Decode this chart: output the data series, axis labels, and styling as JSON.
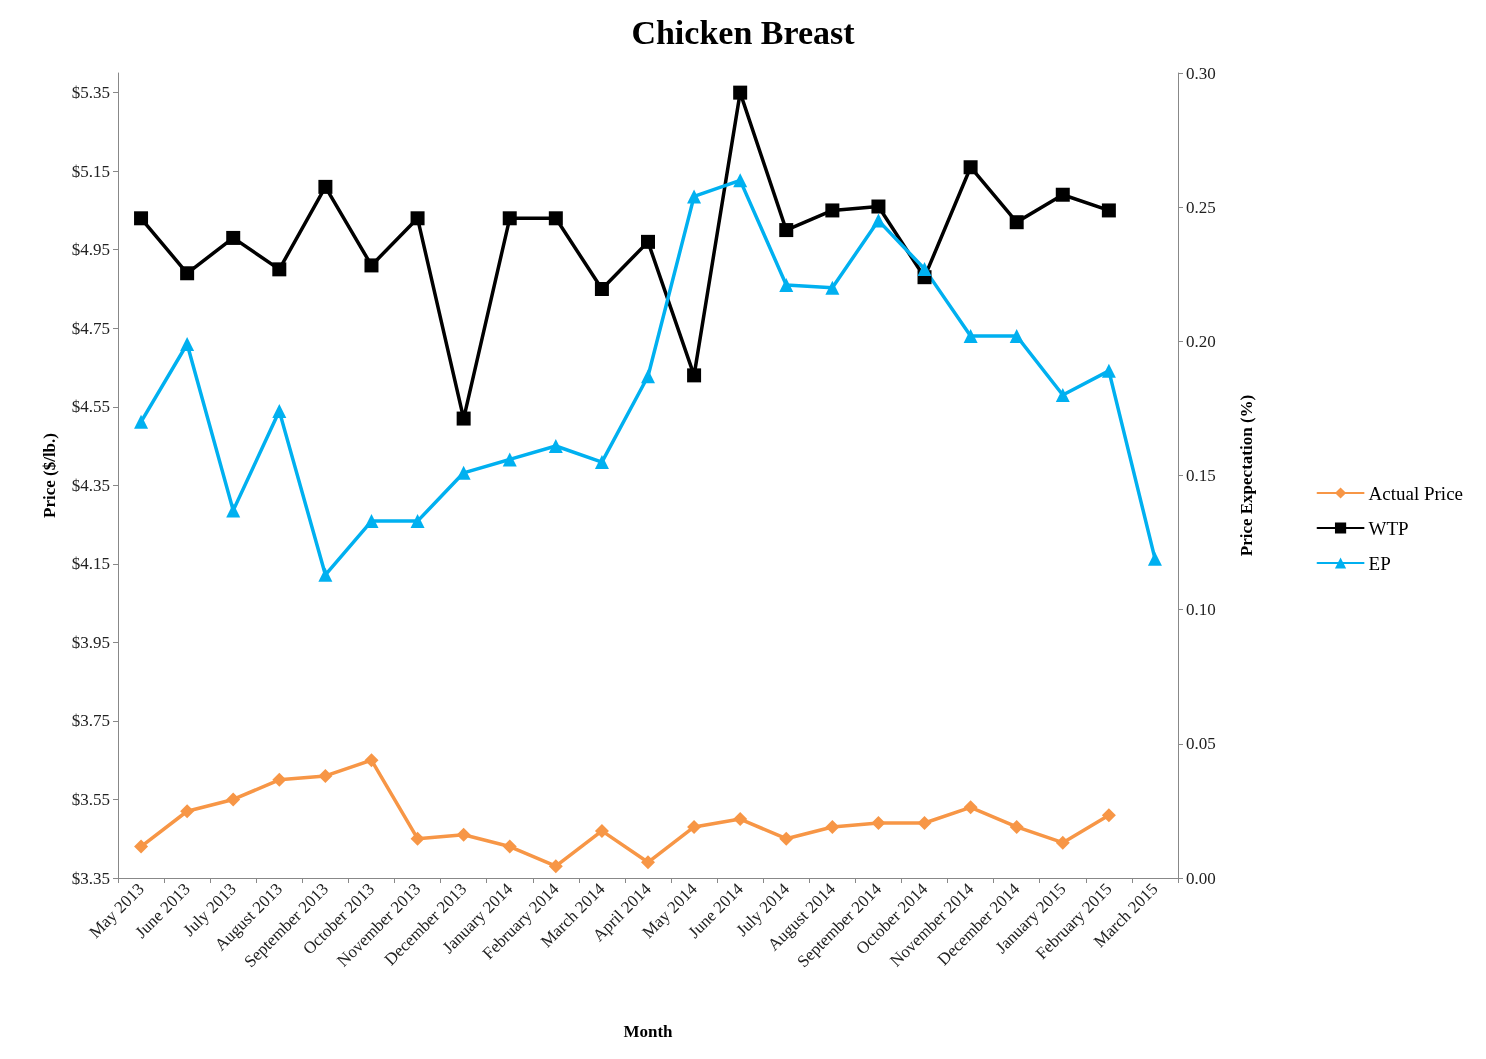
{
  "chart_data": {
    "type": "line",
    "title": "Chicken Breast",
    "xlabel": "Month",
    "ylabel": "Price ($/lb.)",
    "y2label": "Price Expectation (%)",
    "categories": [
      "May 2013",
      "June 2013",
      "July 2013",
      "August 2013",
      "September 2013",
      "October 2013",
      "November 2013",
      "December 2013",
      "January 2014",
      "February 2014",
      "March 2014",
      "April 2014",
      "May 2014",
      "June 2014",
      "July 2014",
      "August 2014",
      "September 2014",
      "October 2014",
      "November 2014",
      "December 2014",
      "January 2015",
      "February 2015",
      "March 2015"
    ],
    "series": [
      {
        "name": "Actual Price",
        "color": "#f79646",
        "marker": "diamond",
        "values": [
          3.43,
          3.52,
          3.55,
          3.6,
          3.61,
          3.65,
          3.45,
          3.46,
          3.43,
          3.38,
          3.47,
          3.39,
          3.48,
          3.5,
          3.45,
          3.48,
          3.49,
          3.49,
          3.53,
          3.48,
          3.44,
          3.51,
          null
        ]
      },
      {
        "name": "WTP",
        "color": "#000000",
        "marker": "square",
        "values": [
          5.03,
          4.89,
          4.98,
          4.9,
          5.11,
          4.91,
          5.03,
          4.52,
          5.03,
          5.03,
          4.85,
          4.97,
          4.63,
          5.35,
          5.0,
          5.05,
          5.06,
          4.88,
          5.16,
          5.02,
          5.09,
          5.05,
          null
        ]
      },
      {
        "name": "EP",
        "color": "#00b0f0",
        "marker": "triangle",
        "axis": "y2",
        "values": [
          0.17,
          0.199,
          0.137,
          0.174,
          0.113,
          0.133,
          0.133,
          0.151,
          0.156,
          0.161,
          0.155,
          0.187,
          0.254,
          0.26,
          0.221,
          0.22,
          0.245,
          0.227,
          0.202,
          0.202,
          0.18,
          0.189,
          0.119
        ]
      }
    ],
    "ylim": [
      3.35,
      5.4
    ],
    "yticks": [
      {
        "value": 3.35,
        "label": "$3.35"
      },
      {
        "value": 3.55,
        "label": "$3.55"
      },
      {
        "value": 3.75,
        "label": "$3.75"
      },
      {
        "value": 3.95,
        "label": "$3.95"
      },
      {
        "value": 4.15,
        "label": "$4.15"
      },
      {
        "value": 4.35,
        "label": "$4.35"
      },
      {
        "value": 4.55,
        "label": "$4.55"
      },
      {
        "value": 4.75,
        "label": "$4.75"
      },
      {
        "value": 4.95,
        "label": "$4.95"
      },
      {
        "value": 5.15,
        "label": "$5.15"
      },
      {
        "value": 5.35,
        "label": "$5.35"
      }
    ],
    "y2lim": [
      0,
      0.3
    ],
    "y2ticks": [
      {
        "value": 0,
        "label": "0.00"
      },
      {
        "value": 0.05,
        "label": "0.05"
      },
      {
        "value": 0.1,
        "label": "0.10"
      },
      {
        "value": 0.15,
        "label": "0.15"
      },
      {
        "value": 0.2,
        "label": "0.20"
      },
      {
        "value": 0.25,
        "label": "0.25"
      },
      {
        "value": 0.3,
        "label": "0.30"
      }
    ],
    "grid": false,
    "legend": "right",
    "line_style": "solid"
  }
}
